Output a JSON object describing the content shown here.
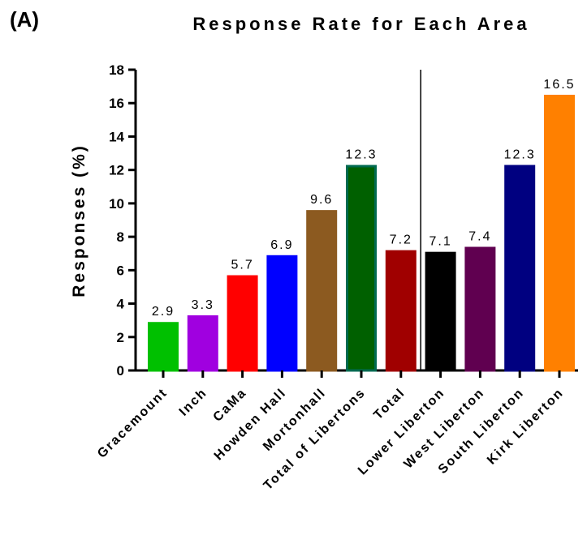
{
  "panel_label": "(A)",
  "chart_data": {
    "type": "bar",
    "title": "Response Rate for Each Area",
    "xlabel": "",
    "ylabel": "Responses (%)",
    "ylim": [
      0,
      18
    ],
    "yticks": [
      0,
      2,
      4,
      6,
      8,
      10,
      12,
      14,
      16,
      18
    ],
    "grid": false,
    "categories": [
      "Gracemount",
      "Inch",
      "CaMa",
      "Howden Hall",
      "Mortonhall",
      "Total of Libertons",
      "Total",
      "Lower Liberton",
      "West Liberton",
      "South Liberton",
      "Kirk Liberton"
    ],
    "values": [
      2.9,
      3.3,
      5.7,
      6.9,
      9.6,
      12.3,
      7.2,
      7.1,
      7.4,
      12.3,
      16.5
    ],
    "data_labels": [
      "2.9",
      "3.3",
      "5.7",
      "6.9",
      "9.6",
      "12.3",
      "7.2",
      "7.1",
      "7.4",
      "12.3",
      "16.5"
    ],
    "colors": [
      "#00c000",
      "#a000e0",
      "#ff0000",
      "#0000ff",
      "#8c5a20",
      "#006000",
      "#a00000",
      "#000000",
      "#600050",
      "#000080",
      "#ff8000"
    ],
    "outline_colors": [
      "#00c000",
      "#a000e0",
      "#ff0000",
      "#0000ff",
      "#8c5a20",
      "#006a50",
      "#a00000",
      "#000000",
      "#600050",
      "#000080",
      "#ff8000"
    ],
    "separator_after_category": "Total"
  }
}
